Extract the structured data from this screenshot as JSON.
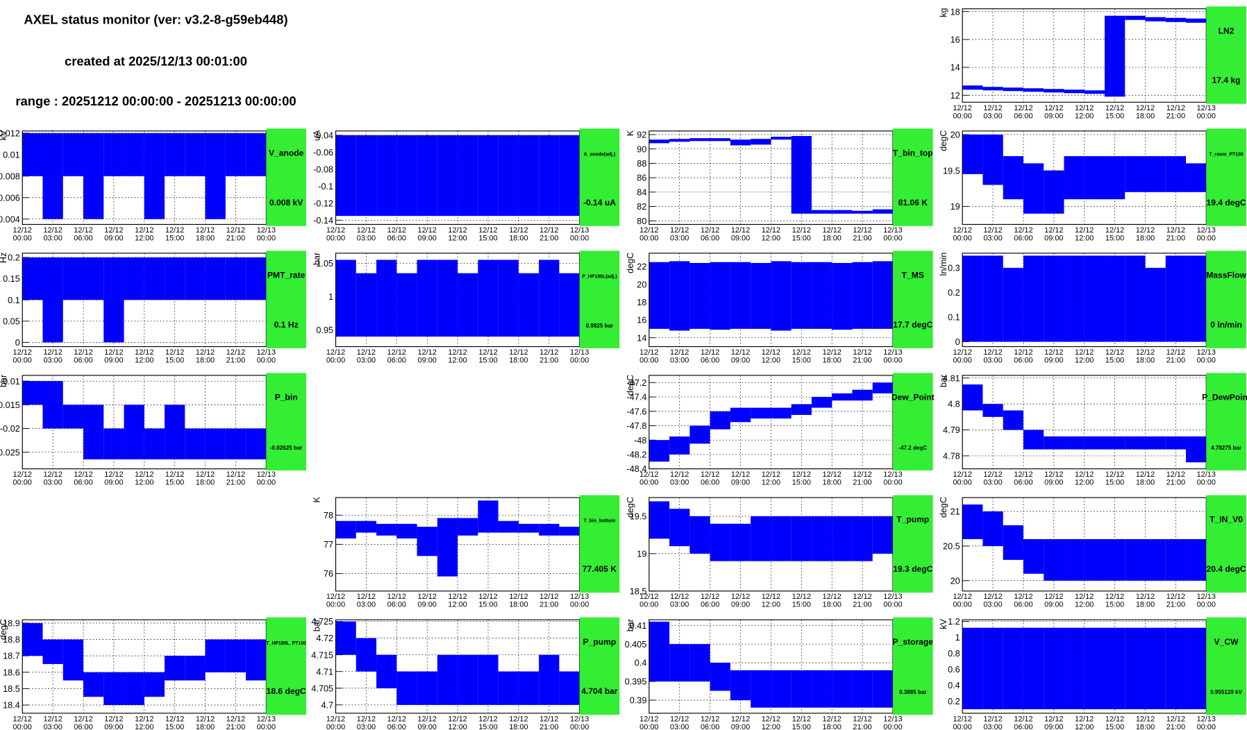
{
  "header": {
    "title": "AXEL status monitor (ver: v3.2-8-g59eb448)",
    "created": "created at 2025/12/13 00:01:00",
    "range": "range : 20251212 00:00:00 - 20251213 00:00:00"
  },
  "time_axis": {
    "xlim": [
      0,
      24
    ],
    "bins": [
      0,
      2,
      4,
      6,
      8,
      10,
      12,
      14,
      16,
      18,
      20,
      22,
      24
    ],
    "xticks": [
      {
        "value": 0,
        "label": "12/12 00:00"
      },
      {
        "value": 3,
        "label": "12/12 03:00"
      },
      {
        "value": 6,
        "label": "12/12 06:00"
      },
      {
        "value": 9,
        "label": "12/12 09:00"
      },
      {
        "value": 12,
        "label": "12/12 12:00"
      },
      {
        "value": 15,
        "label": "12/12 15:00"
      },
      {
        "value": 18,
        "label": "12/12 18:00"
      },
      {
        "value": 21,
        "label": "12/12 21:00"
      },
      {
        "value": 24,
        "label": "12/13 00:00"
      }
    ]
  },
  "chart_data": [
    {
      "type": "range",
      "title": "LN2",
      "unit": "kg",
      "readout": "17.4 kg",
      "color": "#0000ff",
      "ylim": [
        11.5,
        18.2
      ],
      "yticks": [
        12,
        14,
        16,
        18
      ],
      "lower": [
        12.4,
        12.35,
        12.3,
        12.25,
        12.2,
        12.15,
        12.1,
        11.9,
        17.4,
        17.3,
        17.25,
        17.2
      ],
      "upper": [
        12.7,
        12.6,
        12.55,
        12.5,
        12.45,
        12.4,
        12.35,
        17.7,
        17.7,
        17.6,
        17.55,
        17.5
      ]
    },
    {
      "type": "range",
      "title": "V_anode",
      "unit": "kV",
      "readout": "0.008 kV",
      "color": "#0000ff",
      "ylim": [
        0.0035,
        0.0122
      ],
      "yticks": [
        0.004,
        0.006,
        0.008,
        0.01,
        0.012
      ],
      "lower": [
        0.008,
        0.004,
        0.008,
        0.004,
        0.008,
        0.008,
        0.004,
        0.008,
        0.008,
        0.004,
        0.008,
        0.008
      ],
      "upper": [
        0.012,
        0.012,
        0.012,
        0.012,
        0.012,
        0.012,
        0.012,
        0.012,
        0.012,
        0.012,
        0.012,
        0.012
      ]
    },
    {
      "type": "range",
      "title": "A_anode(adj.)",
      "unit": "uA",
      "readout": "-0.14 uA",
      "color": "#0000ff",
      "ylim": [
        -0.145,
        -0.035
      ],
      "yticks": [
        -0.14,
        -0.12,
        -0.1,
        -0.08,
        -0.06,
        -0.04
      ],
      "lower": [
        -0.135,
        -0.135,
        -0.135,
        -0.135,
        -0.135,
        -0.135,
        -0.135,
        -0.135,
        -0.135,
        -0.135,
        -0.135,
        -0.135
      ],
      "upper": [
        -0.04,
        -0.04,
        -0.04,
        -0.04,
        -0.04,
        -0.04,
        -0.04,
        -0.04,
        -0.04,
        -0.04,
        -0.04,
        -0.04
      ]
    },
    {
      "type": "range",
      "title": "T_bin_top",
      "unit": "K",
      "readout": "81.06 K",
      "color": "#0000ff",
      "ylim": [
        79.5,
        92.5
      ],
      "yticks": [
        80,
        82,
        84,
        86,
        88,
        90,
        92
      ],
      "lower": [
        90.8,
        91,
        91.1,
        91.1,
        90.5,
        90.6,
        91.3,
        81,
        81,
        81,
        81,
        81
      ],
      "upper": [
        91.3,
        91.4,
        91.5,
        91.5,
        91.3,
        91.4,
        91.7,
        91.8,
        81.5,
        81.5,
        81.4,
        81.6
      ]
    },
    {
      "type": "range",
      "title": "T_room_PT100",
      "unit": "degC",
      "readout": "19.4 degC",
      "color": "#0000ff",
      "ylim": [
        18.75,
        20.05
      ],
      "yticks": [
        19,
        19.5,
        20
      ],
      "lower": [
        19.45,
        19.3,
        19.1,
        18.9,
        18.9,
        19.1,
        19.1,
        19.1,
        19.2,
        19.2,
        19.2,
        19.2
      ],
      "upper": [
        20,
        20,
        19.7,
        19.6,
        19.5,
        19.7,
        19.7,
        19.7,
        19.7,
        19.7,
        19.7,
        19.6
      ]
    },
    {
      "type": "range",
      "title": "PMT_rate",
      "unit": "Hz",
      "readout": "0.1 Hz",
      "color": "#0000ff",
      "ylim": [
        -0.01,
        0.21
      ],
      "yticks": [
        0,
        0.05,
        0.1,
        0.15,
        0.2
      ],
      "lower": [
        0.1,
        0,
        0.1,
        0.1,
        0,
        0.1,
        0.1,
        0.1,
        0.1,
        0.1,
        0.1,
        0.1
      ],
      "upper": [
        0.2,
        0.2,
        0.2,
        0.2,
        0.2,
        0.2,
        0.2,
        0.2,
        0.2,
        0.2,
        0.2,
        0.2
      ]
    },
    {
      "type": "range",
      "title": "P_HP180L(adj.)",
      "unit": "bar",
      "readout": "0.9825 bar",
      "color": "#0000ff",
      "ylim": [
        0.925,
        1.065
      ],
      "yticks": [
        0.95,
        1,
        1.05
      ],
      "lower": [
        0.94,
        0.94,
        0.94,
        0.94,
        0.94,
        0.94,
        0.94,
        0.94,
        0.94,
        0.94,
        0.94,
        0.94
      ],
      "upper": [
        1.055,
        1.035,
        1.055,
        1.035,
        1.055,
        1.055,
        1.035,
        1.055,
        1.055,
        1.035,
        1.055,
        1.035
      ]
    },
    {
      "type": "range",
      "title": "T_MS",
      "unit": "degC",
      "readout": "17.7 degC",
      "color": "#0000ff",
      "ylim": [
        13,
        23.5
      ],
      "yticks": [
        14,
        16,
        18,
        20,
        22
      ],
      "lower": [
        15,
        14.8,
        15,
        14.9,
        15,
        15,
        14.8,
        15,
        15,
        14.9,
        15,
        15
      ],
      "upper": [
        22.5,
        22.6,
        22.4,
        22.5,
        22.5,
        22.4,
        22.6,
        22.5,
        22.5,
        22.4,
        22.5,
        22.6
      ]
    },
    {
      "type": "range",
      "title": "MassFlow",
      "unit": "ln/min",
      "readout": "0 ln/min",
      "color": "#0000ff",
      "ylim": [
        -0.02,
        0.36
      ],
      "yticks": [
        0,
        0.1,
        0.2,
        0.3
      ],
      "lower": [
        0,
        0,
        0,
        0,
        0,
        0,
        0,
        0,
        0,
        0,
        0,
        0
      ],
      "upper": [
        0.35,
        0.35,
        0.3,
        0.35,
        0.35,
        0.35,
        0.35,
        0.35,
        0.35,
        0.3,
        0.35,
        0.35
      ]
    },
    {
      "type": "range",
      "title": "P_bin",
      "unit": "bar",
      "readout": "-0.02625 bar",
      "color": "#0000ff",
      "ylim": [
        -0.0285,
        -0.0088
      ],
      "yticks": [
        -0.025,
        -0.02,
        -0.015,
        -0.01
      ],
      "lower": [
        -0.015,
        -0.02,
        -0.02,
        -0.0265,
        -0.0265,
        -0.0265,
        -0.0265,
        -0.0265,
        -0.0265,
        -0.0265,
        -0.0265,
        -0.0265
      ],
      "upper": [
        -0.01,
        -0.01,
        -0.015,
        -0.015,
        -0.02,
        -0.015,
        -0.02,
        -0.015,
        -0.02,
        -0.02,
        -0.02,
        -0.02
      ]
    },
    {
      "type": "range",
      "title": "Dew_Point",
      "unit": "degC",
      "readout": "-47.2 degC",
      "color": "#0000ff",
      "ylim": [
        -48.4,
        -47.1
      ],
      "yticks": [
        -48.4,
        -48.2,
        -48,
        -47.8,
        -47.6,
        -47.4,
        -47.2
      ],
      "lower": [
        -48.3,
        -48.2,
        -48.05,
        -47.85,
        -47.75,
        -47.7,
        -47.7,
        -47.65,
        -47.55,
        -47.45,
        -47.45,
        -47.35
      ],
      "upper": [
        -48,
        -47.95,
        -47.8,
        -47.6,
        -47.55,
        -47.55,
        -47.55,
        -47.5,
        -47.4,
        -47.35,
        -47.3,
        -47.2
      ]
    },
    {
      "type": "range",
      "title": "P_DewPoint",
      "unit": "bar",
      "readout": "4.78275 bar",
      "color": "#0000ff",
      "ylim": [
        4.775,
        4.811
      ],
      "yticks": [
        4.78,
        4.79,
        4.8,
        4.81
      ],
      "lower": [
        4.7975,
        4.795,
        4.79,
        4.7825,
        4.7825,
        4.7825,
        4.7825,
        4.7825,
        4.7825,
        4.7825,
        4.7825,
        4.7775
      ],
      "upper": [
        4.8075,
        4.8,
        4.7975,
        4.79,
        4.7875,
        4.7875,
        4.7875,
        4.7875,
        4.7875,
        4.7875,
        4.7875,
        4.7875
      ]
    },
    {
      "type": "range",
      "title": "T_bin_bottom",
      "unit": "K",
      "readout": "77.405 K",
      "color": "#0000ff",
      "ylim": [
        75.4,
        78.6
      ],
      "yticks": [
        76,
        77,
        78
      ],
      "lower": [
        77.2,
        77.4,
        77.3,
        77.2,
        76.6,
        75.9,
        77.3,
        77.4,
        77.4,
        77.4,
        77.3,
        77.3
      ],
      "upper": [
        77.8,
        77.8,
        77.7,
        77.7,
        77.6,
        77.9,
        77.9,
        78.5,
        77.8,
        77.7,
        77.7,
        77.6
      ]
    },
    {
      "type": "range",
      "title": "T_pump",
      "unit": "degC",
      "readout": "19.3 degC",
      "color": "#0000ff",
      "ylim": [
        18.5,
        19.75
      ],
      "yticks": [
        18.5,
        19,
        19.5
      ],
      "lower": [
        19.2,
        19.1,
        19,
        18.9,
        18.9,
        18.9,
        18.9,
        18.9,
        18.9,
        18.9,
        18.9,
        19
      ],
      "upper": [
        19.7,
        19.6,
        19.5,
        19.4,
        19.4,
        19.5,
        19.5,
        19.5,
        19.5,
        19.5,
        19.5,
        19.5
      ]
    },
    {
      "type": "range",
      "title": "T_IN_V0",
      "unit": "degC",
      "readout": "20.4 degC",
      "color": "#0000ff",
      "ylim": [
        19.85,
        21.2
      ],
      "yticks": [
        20,
        20.5,
        21
      ],
      "lower": [
        20.6,
        20.5,
        20.3,
        20.1,
        20,
        20,
        20,
        20,
        20,
        20,
        20,
        20
      ],
      "upper": [
        21.1,
        21,
        20.8,
        20.6,
        20.6,
        20.6,
        20.6,
        20.6,
        20.6,
        20.6,
        20.6,
        20.6
      ]
    },
    {
      "type": "range",
      "title": "T_HP180L_PT100",
      "unit": "degC",
      "readout": "18.6 degC",
      "color": "#0000ff",
      "ylim": [
        18.35,
        18.92
      ],
      "yticks": [
        18.4,
        18.5,
        18.6,
        18.7,
        18.8,
        18.9
      ],
      "lower": [
        18.7,
        18.65,
        18.55,
        18.45,
        18.4,
        18.4,
        18.45,
        18.55,
        18.55,
        18.6,
        18.6,
        18.55
      ],
      "upper": [
        18.9,
        18.8,
        18.8,
        18.6,
        18.6,
        18.6,
        18.6,
        18.7,
        18.7,
        18.8,
        18.8,
        18.8
      ]
    },
    {
      "type": "range",
      "title": "P_pump",
      "unit": "bar",
      "readout": "4.704 bar",
      "color": "#0000ff",
      "ylim": [
        4.6975,
        4.7255
      ],
      "yticks": [
        4.7,
        4.705,
        4.71,
        4.715,
        4.72,
        4.725
      ],
      "lower": [
        4.715,
        4.71,
        4.705,
        4.7,
        4.7,
        4.7,
        4.7,
        4.7,
        4.7,
        4.7,
        4.7,
        4.7
      ],
      "upper": [
        4.725,
        4.72,
        4.715,
        4.71,
        4.71,
        4.715,
        4.715,
        4.715,
        4.71,
        4.71,
        4.715,
        4.71
      ]
    },
    {
      "type": "range",
      "title": "P_storage",
      "unit": "bar",
      "readout": "0.3885 bar",
      "color": "#0000ff",
      "ylim": [
        0.3865,
        0.4115
      ],
      "yticks": [
        0.39,
        0.395,
        0.4,
        0.405,
        0.41
      ],
      "lower": [
        0.395,
        0.395,
        0.395,
        0.3925,
        0.39,
        0.388,
        0.388,
        0.388,
        0.388,
        0.388,
        0.388,
        0.388
      ],
      "upper": [
        0.411,
        0.405,
        0.405,
        0.4,
        0.398,
        0.398,
        0.398,
        0.398,
        0.398,
        0.398,
        0.398,
        0.398
      ]
    },
    {
      "type": "range",
      "title": "V_CW",
      "unit": "kV",
      "readout": "0.955129 kV",
      "color": "#0000ff",
      "ylim": [
        0.05,
        1.22
      ],
      "yticks": [
        0.2,
        0.4,
        0.6,
        0.8,
        1,
        1.2
      ],
      "lower": [
        0.1,
        0.1,
        0.1,
        0.1,
        0.1,
        0.1,
        0.1,
        0.1,
        0.1,
        0.1,
        0.1,
        0.1
      ],
      "upper": [
        1.12,
        1.12,
        1.12,
        1.12,
        1.12,
        1.12,
        1.12,
        1.12,
        1.12,
        1.12,
        1.12,
        1.12
      ]
    }
  ]
}
